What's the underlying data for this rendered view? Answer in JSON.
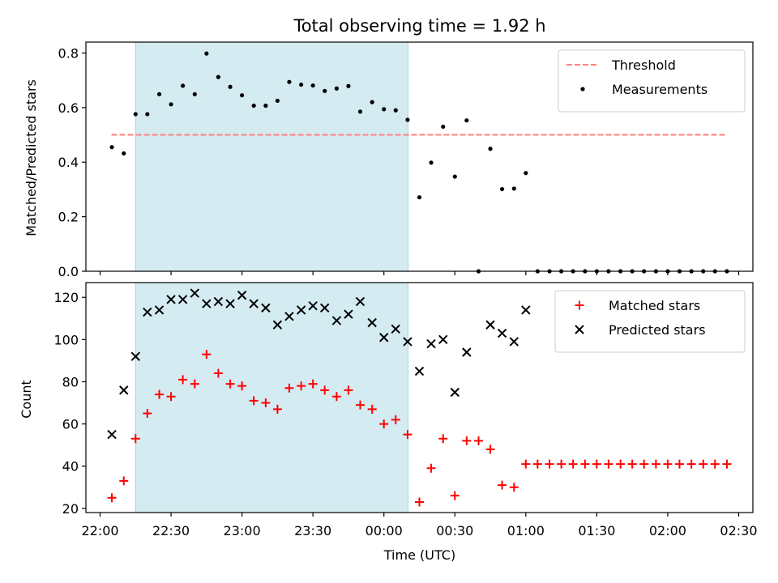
{
  "chart_data": [
    {
      "type": "scatter",
      "title": "Total observing time = 1.92 h",
      "ylabel": "Matched/Predicted stars",
      "ylim": [
        0,
        0.84
      ],
      "yticks": [
        0.0,
        0.2,
        0.4,
        0.6,
        0.8
      ],
      "ytick_labels": [
        "0.0",
        "0.2",
        "0.4",
        "0.6",
        "0.8"
      ],
      "xlim_hours": [
        21.9,
        26.6
      ],
      "shaded_span_hours": [
        22.25,
        24.17
      ],
      "shaded_color": "#d4ebf1",
      "legend_position": "upper right",
      "threshold": {
        "name": "Threshold",
        "value": 0.5,
        "x_start_hours": 22.08,
        "x_end_hours": 26.42,
        "color": "#ff7f7f",
        "style": "dashed"
      },
      "series": [
        {
          "name": "Measurements",
          "marker": "dot",
          "color": "#000000",
          "points": [
            [
              22.083,
              0.455
            ],
            [
              22.167,
              0.432
            ],
            [
              22.25,
              0.576
            ],
            [
              22.333,
              0.576
            ],
            [
              22.417,
              0.649
            ],
            [
              22.5,
              0.612
            ],
            [
              22.583,
              0.68
            ],
            [
              22.667,
              0.649
            ],
            [
              22.75,
              0.798
            ],
            [
              22.833,
              0.712
            ],
            [
              22.917,
              0.676
            ],
            [
              23.0,
              0.645
            ],
            [
              23.083,
              0.607
            ],
            [
              23.167,
              0.607
            ],
            [
              23.25,
              0.625
            ],
            [
              23.333,
              0.694
            ],
            [
              23.417,
              0.684
            ],
            [
              23.5,
              0.681
            ],
            [
              23.583,
              0.661
            ],
            [
              23.667,
              0.67
            ],
            [
              23.75,
              0.679
            ],
            [
              23.833,
              0.585
            ],
            [
              23.917,
              0.62
            ],
            [
              24.0,
              0.594
            ],
            [
              24.083,
              0.59
            ],
            [
              24.167,
              0.555
            ],
            [
              24.25,
              0.271
            ],
            [
              24.333,
              0.398
            ],
            [
              24.417,
              0.53
            ],
            [
              24.5,
              0.347
            ],
            [
              24.583,
              0.553
            ],
            [
              24.667,
              0.0
            ],
            [
              24.75,
              0.449
            ],
            [
              24.833,
              0.301
            ],
            [
              24.917,
              0.303
            ],
            [
              25.0,
              0.36
            ],
            [
              25.083,
              0.0
            ],
            [
              25.167,
              0.0
            ],
            [
              25.25,
              0.0
            ],
            [
              25.333,
              0.0
            ],
            [
              25.417,
              0.0
            ],
            [
              25.5,
              0.0
            ],
            [
              25.583,
              0.0
            ],
            [
              25.667,
              0.0
            ],
            [
              25.75,
              0.0
            ],
            [
              25.833,
              0.0
            ],
            [
              25.917,
              0.0
            ],
            [
              26.0,
              0.0
            ],
            [
              26.083,
              0.0
            ],
            [
              26.167,
              0.0
            ],
            [
              26.25,
              0.0
            ],
            [
              26.333,
              0.0
            ],
            [
              26.417,
              0.0
            ]
          ]
        }
      ]
    },
    {
      "type": "scatter",
      "xlabel": "Time (UTC)",
      "ylabel": "Count",
      "ylim": [
        18,
        127
      ],
      "yticks": [
        20,
        40,
        60,
        80,
        100,
        120
      ],
      "ytick_labels": [
        "20",
        "40",
        "60",
        "80",
        "100",
        "120"
      ],
      "xlim_hours": [
        21.9,
        26.6
      ],
      "xticks_hours": [
        22.0,
        22.5,
        23.0,
        23.5,
        24.0,
        24.5,
        25.0,
        25.5,
        26.0,
        26.5
      ],
      "xtick_labels": [
        "22:00",
        "22:30",
        "23:00",
        "23:30",
        "00:00",
        "00:30",
        "01:00",
        "01:30",
        "02:00",
        "02:30"
      ],
      "shaded_span_hours": [
        22.25,
        24.17
      ],
      "shaded_color": "#d4ebf1",
      "legend_position": "upper right",
      "series": [
        {
          "name": "Matched stars",
          "marker": "plus",
          "color": "#ff0000",
          "points": [
            [
              22.083,
              25
            ],
            [
              22.167,
              33
            ],
            [
              22.25,
              53
            ],
            [
              22.333,
              65
            ],
            [
              22.417,
              74
            ],
            [
              22.5,
              73
            ],
            [
              22.583,
              81
            ],
            [
              22.667,
              79
            ],
            [
              22.75,
              93
            ],
            [
              22.833,
              84
            ],
            [
              22.917,
              79
            ],
            [
              23.0,
              78
            ],
            [
              23.083,
              71
            ],
            [
              23.167,
              70
            ],
            [
              23.25,
              67
            ],
            [
              23.333,
              77
            ],
            [
              23.417,
              78
            ],
            [
              23.5,
              79
            ],
            [
              23.583,
              76
            ],
            [
              23.667,
              73
            ],
            [
              23.75,
              76
            ],
            [
              23.833,
              69
            ],
            [
              23.917,
              67
            ],
            [
              24.0,
              60
            ],
            [
              24.083,
              62
            ],
            [
              24.167,
              55
            ],
            [
              24.25,
              23
            ],
            [
              24.333,
              39
            ],
            [
              24.417,
              53
            ],
            [
              24.5,
              26
            ],
            [
              24.583,
              52
            ],
            [
              24.667,
              52
            ],
            [
              24.75,
              48
            ],
            [
              24.833,
              31
            ],
            [
              24.917,
              30
            ],
            [
              25.0,
              41
            ],
            [
              25.083,
              41
            ],
            [
              25.167,
              41
            ],
            [
              25.25,
              41
            ],
            [
              25.333,
              41
            ],
            [
              25.417,
              41
            ],
            [
              25.5,
              41
            ],
            [
              25.583,
              41
            ],
            [
              25.667,
              41
            ],
            [
              25.75,
              41
            ],
            [
              25.833,
              41
            ],
            [
              25.917,
              41
            ],
            [
              26.0,
              41
            ],
            [
              26.083,
              41
            ],
            [
              26.167,
              41
            ],
            [
              26.25,
              41
            ],
            [
              26.333,
              41
            ],
            [
              26.417,
              41
            ]
          ]
        },
        {
          "name": "Predicted stars",
          "marker": "x",
          "color": "#000000",
          "points": [
            [
              22.083,
              55
            ],
            [
              22.167,
              76
            ],
            [
              22.25,
              92
            ],
            [
              22.333,
              113
            ],
            [
              22.417,
              114
            ],
            [
              22.5,
              119
            ],
            [
              22.583,
              119
            ],
            [
              22.667,
              122
            ],
            [
              22.75,
              117
            ],
            [
              22.833,
              118
            ],
            [
              22.917,
              117
            ],
            [
              23.0,
              121
            ],
            [
              23.083,
              117
            ],
            [
              23.167,
              115
            ],
            [
              23.25,
              107
            ],
            [
              23.333,
              111
            ],
            [
              23.417,
              114
            ],
            [
              23.5,
              116
            ],
            [
              23.583,
              115
            ],
            [
              23.667,
              109
            ],
            [
              23.75,
              112
            ],
            [
              23.833,
              118
            ],
            [
              23.917,
              108
            ],
            [
              24.0,
              101
            ],
            [
              24.083,
              105
            ],
            [
              24.167,
              99
            ],
            [
              24.25,
              85
            ],
            [
              24.333,
              98
            ],
            [
              24.417,
              100
            ],
            [
              24.5,
              75
            ],
            [
              24.583,
              94
            ],
            [
              24.75,
              107
            ],
            [
              24.833,
              103
            ],
            [
              24.917,
              99
            ],
            [
              25.0,
              114
            ]
          ]
        }
      ]
    }
  ]
}
